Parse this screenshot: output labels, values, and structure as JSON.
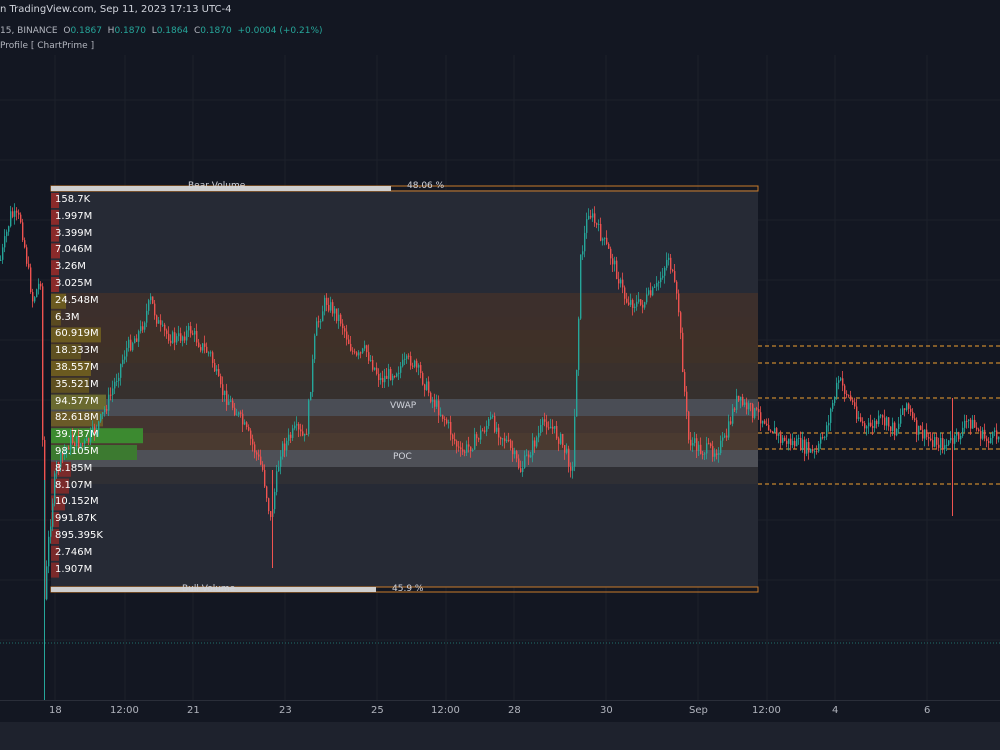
{
  "header": {
    "title": "n TradingView.com, Sep 11, 2023 17:13 UTC-4"
  },
  "legend": {
    "symbol": "15, BINANCE",
    "o_label": "O",
    "o_value": "0.1867",
    "h_label": "H",
    "h_value": "0.1870",
    "l_label": "L",
    "l_value": "0.1864",
    "c_label": "C",
    "c_value": "0.1870",
    "change": "+0.0004 (+0.21%)",
    "indicator": "Profile [ ChartPrime ]"
  },
  "colors": {
    "background": "#131722",
    "up": "#26a69a",
    "down": "#ef5350",
    "orange": "#f0a030",
    "grid": "#1e222d"
  },
  "volume_box": {
    "bear_label": "Bear Volume",
    "bear_pct": "48.06 %",
    "bull_label": "Bull Volume",
    "bull_pct": "45.9 %",
    "vwap_label": "VWAP",
    "poc_label": "POC",
    "profile_levels": [
      "158.7K",
      "1.997M",
      "3.399M",
      "7.046M",
      "3.26M",
      "3.025M",
      "24.548M",
      "6.3M",
      "60.919M",
      "18.333M",
      "38.557M",
      "35.521M",
      "94.577M",
      "82.618M",
      "39.737M",
      "98.105M",
      "8.185M",
      "8.107M",
      "10.152M",
      "991.87K",
      "895.395K",
      "2.746M",
      "1.907M"
    ]
  },
  "time_axis": [
    "18",
    "12:00",
    "21",
    "23",
    "25",
    "12:00",
    "28",
    "30",
    "Sep",
    "12:00",
    "4",
    "6"
  ]
}
